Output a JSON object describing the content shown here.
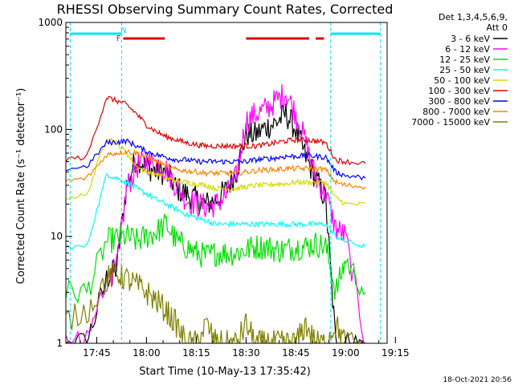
{
  "chart_data": {
    "type": "line",
    "title": "RHESSI Observing Summary Count Rates, Corrected",
    "xlabel": "Start Time (10-May-13 17:35:42)",
    "ylabel": "Corrected Count Rate (s⁻¹ detector⁻¹)",
    "yscale": "log",
    "ylim": [
      1,
      1000
    ],
    "xlim": [
      "17:35:42",
      "19:12:30"
    ],
    "xticks": [
      "17:45",
      "18:00",
      "18:15",
      "18:30",
      "18:45",
      "19:00",
      "19:15"
    ],
    "yticks": [
      "1",
      "10",
      "100",
      "1000"
    ],
    "legend": {
      "placement": "right",
      "header": [
        "Det 1,3,4,5,6,9,",
        "Att 0"
      ]
    },
    "timestamp": "18-Oct-2021 20:56",
    "flags": [
      {
        "label": "N",
        "color": "#00e5ee",
        "intervals": [
          [
            "17:37:00",
            "17:52:30"
          ],
          [
            "18:55:30",
            "19:10:30"
          ]
        ]
      },
      {
        "label": "F",
        "color": "#e00000",
        "intervals": [
          [
            "17:53:00",
            "18:05:30"
          ],
          [
            "18:30:00",
            "18:49:00"
          ],
          [
            "18:51:00",
            "18:53:30"
          ]
        ]
      }
    ],
    "series": [
      {
        "name": "3 - 6 keV",
        "color": "#000000",
        "values": [
          [
            17.4,
            1
          ],
          [
            17.55,
            1
          ],
          [
            17.7,
            1
          ],
          [
            17.8,
            4
          ],
          [
            17.85,
            5
          ],
          [
            17.9,
            30
          ],
          [
            17.95,
            55
          ],
          [
            18.0,
            45
          ],
          [
            18.05,
            40
          ],
          [
            18.1,
            40
          ],
          [
            18.15,
            28
          ],
          [
            18.2,
            25
          ],
          [
            18.25,
            22
          ],
          [
            18.3,
            20
          ],
          [
            18.35,
            22
          ],
          [
            18.4,
            27
          ],
          [
            18.45,
            40
          ],
          [
            18.5,
            90
          ],
          [
            18.55,
            90
          ],
          [
            18.6,
            105
          ],
          [
            18.65,
            115
          ],
          [
            18.7,
            140
          ],
          [
            18.75,
            100
          ],
          [
            18.8,
            55
          ],
          [
            18.85,
            35
          ],
          [
            18.9,
            22
          ],
          [
            18.95,
            1
          ],
          [
            19.0,
            1
          ],
          [
            19.1,
            1
          ]
        ]
      },
      {
        "name": "6 - 12 keV",
        "color": "#ff00ff",
        "values": [
          [
            17.4,
            1
          ],
          [
            17.55,
            1
          ],
          [
            17.7,
            1
          ],
          [
            17.8,
            4
          ],
          [
            17.85,
            5
          ],
          [
            17.9,
            28
          ],
          [
            17.95,
            45
          ],
          [
            18.0,
            50
          ],
          [
            18.05,
            48
          ],
          [
            18.1,
            42
          ],
          [
            18.15,
            30
          ],
          [
            18.2,
            22
          ],
          [
            18.25,
            20
          ],
          [
            18.3,
            19
          ],
          [
            18.35,
            20
          ],
          [
            18.4,
            24
          ],
          [
            18.45,
            35
          ],
          [
            18.5,
            120
          ],
          [
            18.55,
            140
          ],
          [
            18.6,
            155
          ],
          [
            18.65,
            185
          ],
          [
            18.7,
            220
          ],
          [
            18.75,
            140
          ],
          [
            18.8,
            75
          ],
          [
            18.85,
            35
          ],
          [
            18.9,
            25
          ],
          [
            18.95,
            12
          ],
          [
            19.0,
            10
          ],
          [
            19.1,
            1
          ]
        ]
      },
      {
        "name": "12 - 25 keV",
        "color": "#00e000",
        "values": [
          [
            17.4,
            3
          ],
          [
            17.55,
            3
          ],
          [
            17.7,
            3
          ],
          [
            17.8,
            9
          ],
          [
            17.85,
            9.5
          ],
          [
            17.9,
            10
          ],
          [
            17.95,
            9
          ],
          [
            18.0,
            10
          ],
          [
            18.05,
            11
          ],
          [
            18.1,
            13
          ],
          [
            18.15,
            9
          ],
          [
            18.2,
            8
          ],
          [
            18.25,
            7
          ],
          [
            18.3,
            6.5
          ],
          [
            18.35,
            7
          ],
          [
            18.4,
            7
          ],
          [
            18.45,
            7
          ],
          [
            18.5,
            7.5
          ],
          [
            18.55,
            8
          ],
          [
            18.6,
            8
          ],
          [
            18.65,
            7.5
          ],
          [
            18.7,
            7.5
          ],
          [
            18.75,
            8
          ],
          [
            18.8,
            8
          ],
          [
            18.85,
            8.5
          ],
          [
            18.9,
            8
          ],
          [
            18.95,
            3
          ],
          [
            19.0,
            6
          ],
          [
            19.1,
            3
          ]
        ]
      },
      {
        "name": "25 - 50 keV",
        "color": "#00ffff",
        "values": [
          [
            17.4,
            8
          ],
          [
            17.55,
            8
          ],
          [
            17.7,
            8
          ],
          [
            17.8,
            38
          ],
          [
            17.85,
            35
          ],
          [
            17.9,
            32
          ],
          [
            17.95,
            28
          ],
          [
            18.0,
            25
          ],
          [
            18.05,
            22
          ],
          [
            18.1,
            20
          ],
          [
            18.15,
            18
          ],
          [
            18.2,
            16
          ],
          [
            18.25,
            15
          ],
          [
            18.3,
            14
          ],
          [
            18.35,
            13
          ],
          [
            18.4,
            13
          ],
          [
            18.45,
            13
          ],
          [
            18.5,
            13
          ],
          [
            18.55,
            13
          ],
          [
            18.6,
            13
          ],
          [
            18.65,
            13
          ],
          [
            18.7,
            13
          ],
          [
            18.75,
            13
          ],
          [
            18.8,
            13
          ],
          [
            18.85,
            13
          ],
          [
            18.9,
            13
          ],
          [
            18.95,
            10
          ],
          [
            19.0,
            9
          ],
          [
            19.1,
            8
          ]
        ]
      },
      {
        "name": "50 - 100 keV",
        "color": "#d8d800",
        "values": [
          [
            17.4,
            23
          ],
          [
            17.55,
            23
          ],
          [
            17.7,
            24
          ],
          [
            17.8,
            85
          ],
          [
            17.85,
            75
          ],
          [
            17.9,
            60
          ],
          [
            17.95,
            45
          ],
          [
            18.0,
            40
          ],
          [
            18.05,
            38
          ],
          [
            18.1,
            35
          ],
          [
            18.15,
            33
          ],
          [
            18.2,
            32
          ],
          [
            18.25,
            31
          ],
          [
            18.3,
            30
          ],
          [
            18.35,
            28
          ],
          [
            18.4,
            28
          ],
          [
            18.45,
            28
          ],
          [
            18.5,
            29
          ],
          [
            18.55,
            30
          ],
          [
            18.6,
            30
          ],
          [
            18.65,
            31
          ],
          [
            18.7,
            31
          ],
          [
            18.75,
            32
          ],
          [
            18.8,
            32
          ],
          [
            18.85,
            32
          ],
          [
            18.9,
            32
          ],
          [
            18.95,
            23
          ],
          [
            19.0,
            20
          ],
          [
            19.1,
            20
          ]
        ]
      },
      {
        "name": "100 - 300 keV",
        "color": "#e00000",
        "values": [
          [
            17.4,
            50
          ],
          [
            17.55,
            52
          ],
          [
            17.7,
            55
          ],
          [
            17.8,
            200
          ],
          [
            17.85,
            185
          ],
          [
            17.9,
            170
          ],
          [
            17.95,
            140
          ],
          [
            18.0,
            110
          ],
          [
            18.05,
            95
          ],
          [
            18.1,
            85
          ],
          [
            18.15,
            80
          ],
          [
            18.2,
            75
          ],
          [
            18.25,
            72
          ],
          [
            18.3,
            70
          ],
          [
            18.35,
            70
          ],
          [
            18.4,
            70
          ],
          [
            18.45,
            70
          ],
          [
            18.5,
            70
          ],
          [
            18.55,
            70
          ],
          [
            18.6,
            72
          ],
          [
            18.65,
            75
          ],
          [
            18.7,
            78
          ],
          [
            18.75,
            80
          ],
          [
            18.8,
            80
          ],
          [
            18.85,
            78
          ],
          [
            18.9,
            75
          ],
          [
            18.95,
            52
          ],
          [
            19.0,
            50
          ],
          [
            19.1,
            48
          ]
        ]
      },
      {
        "name": "300 - 800 keV",
        "color": "#0000ff",
        "values": [
          [
            17.4,
            40
          ],
          [
            17.55,
            42
          ],
          [
            17.7,
            45
          ],
          [
            17.8,
            75
          ],
          [
            17.85,
            76
          ],
          [
            17.9,
            78
          ],
          [
            17.95,
            70
          ],
          [
            18.0,
            62
          ],
          [
            18.05,
            58
          ],
          [
            18.1,
            55
          ],
          [
            18.15,
            52
          ],
          [
            18.2,
            52
          ],
          [
            18.25,
            50
          ],
          [
            18.3,
            50
          ],
          [
            18.35,
            50
          ],
          [
            18.4,
            50
          ],
          [
            18.45,
            50
          ],
          [
            18.5,
            50
          ],
          [
            18.55,
            52
          ],
          [
            18.6,
            53
          ],
          [
            18.65,
            54
          ],
          [
            18.7,
            56
          ],
          [
            18.75,
            56
          ],
          [
            18.8,
            57
          ],
          [
            18.85,
            56
          ],
          [
            18.9,
            55
          ],
          [
            18.95,
            40
          ],
          [
            19.0,
            37
          ],
          [
            19.1,
            35
          ]
        ]
      },
      {
        "name": "800 - 7000 keV",
        "color": "#ff8000",
        "values": [
          [
            17.4,
            30
          ],
          [
            17.55,
            32
          ],
          [
            17.7,
            35
          ],
          [
            17.8,
            58
          ],
          [
            17.85,
            60
          ],
          [
            17.9,
            62
          ],
          [
            17.95,
            60
          ],
          [
            18.0,
            55
          ],
          [
            18.05,
            50
          ],
          [
            18.1,
            45
          ],
          [
            18.15,
            42
          ],
          [
            18.2,
            41
          ],
          [
            18.25,
            40
          ],
          [
            18.3,
            39
          ],
          [
            18.35,
            39
          ],
          [
            18.4,
            39
          ],
          [
            18.45,
            39
          ],
          [
            18.5,
            40
          ],
          [
            18.55,
            41
          ],
          [
            18.6,
            42
          ],
          [
            18.65,
            42
          ],
          [
            18.7,
            43
          ],
          [
            18.75,
            43
          ],
          [
            18.8,
            43
          ],
          [
            18.85,
            43
          ],
          [
            18.9,
            42
          ],
          [
            18.95,
            32
          ],
          [
            19.0,
            30
          ],
          [
            19.1,
            29
          ]
        ]
      },
      {
        "name": "7000 - 15000 keV",
        "color": "#808000",
        "values": [
          [
            17.4,
            1
          ],
          [
            17.55,
            1.5
          ],
          [
            17.7,
            2
          ],
          [
            17.8,
            4
          ],
          [
            17.85,
            4.5
          ],
          [
            17.9,
            4
          ],
          [
            17.95,
            3.5
          ],
          [
            18.0,
            3
          ],
          [
            18.05,
            2.5
          ],
          [
            18.1,
            2
          ],
          [
            18.15,
            1.5
          ],
          [
            18.2,
            1
          ],
          [
            18.25,
            1
          ],
          [
            18.3,
            1.5
          ],
          [
            18.35,
            1
          ],
          [
            18.4,
            1
          ],
          [
            18.45,
            1
          ],
          [
            18.5,
            1.5
          ],
          [
            18.55,
            1
          ],
          [
            18.6,
            1
          ],
          [
            18.65,
            1
          ],
          [
            18.7,
            1
          ],
          [
            18.75,
            1
          ],
          [
            18.8,
            1.5
          ],
          [
            18.85,
            1
          ],
          [
            18.9,
            1
          ],
          [
            18.95,
            1.5
          ],
          [
            19.0,
            1
          ],
          [
            19.1,
            1
          ]
        ]
      }
    ]
  }
}
